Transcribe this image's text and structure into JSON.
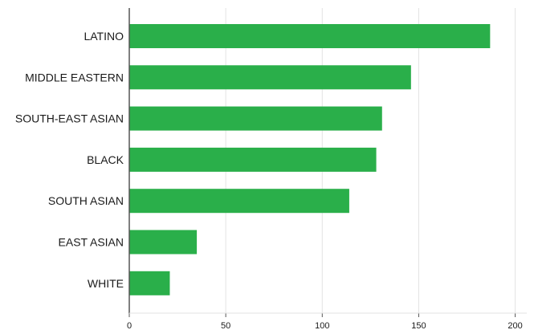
{
  "chart_data": {
    "type": "bar",
    "orientation": "horizontal",
    "title": "",
    "xlabel": "",
    "ylabel": "",
    "categories": [
      "LATINO",
      "MIDDLE EASTERN",
      "SOUTH-EAST ASIAN",
      "BLACK",
      "SOUTH ASIAN",
      "EAST ASIAN",
      "WHITE"
    ],
    "values": [
      187,
      146,
      131,
      128,
      114,
      35,
      21
    ],
    "xlim": [
      0,
      206
    ],
    "xticks": [
      0,
      50,
      100,
      150,
      200
    ],
    "grid": true,
    "bar_color": "#2aaf4a",
    "grid_color": "#e3e3e3",
    "axis_color": "#555555"
  }
}
